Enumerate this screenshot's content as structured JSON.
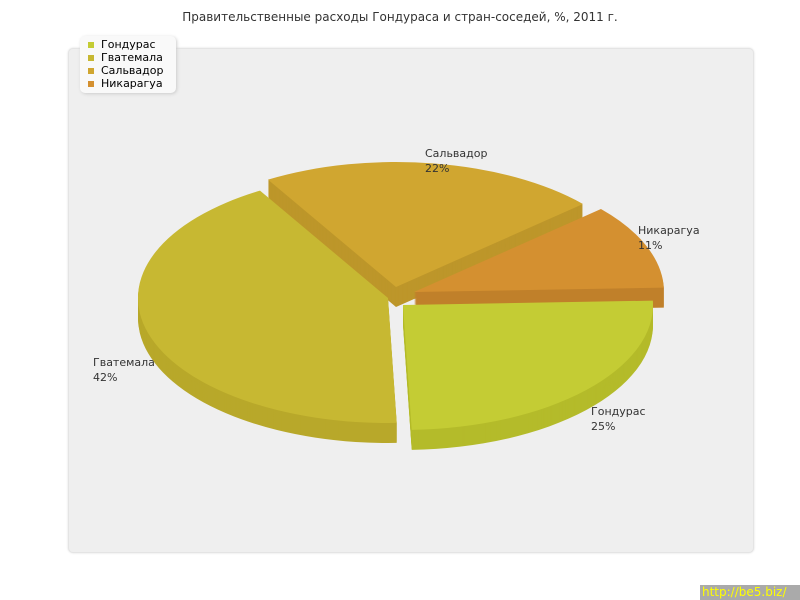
{
  "chart_data": {
    "type": "pie",
    "title": "Правительственные расходы Гондураса и стран-соседей, %, 2011 г.",
    "categories": [
      "Гондурас",
      "Гватемала",
      "Сальвадор",
      "Никарагуа"
    ],
    "values": [
      25,
      42,
      22,
      11
    ],
    "labels": [
      "25%",
      "42%",
      "22%",
      "11%"
    ],
    "colors": [
      "#c4cc34",
      "#c7b832",
      "#d0a630",
      "#d49030"
    ],
    "side_colors": [
      "#b4bb2a",
      "#b8a82a",
      "#bd962a",
      "#c0802a"
    ],
    "legend_position": "top-left",
    "style": "3d-exploded"
  },
  "watermark": "http://be5.biz/"
}
